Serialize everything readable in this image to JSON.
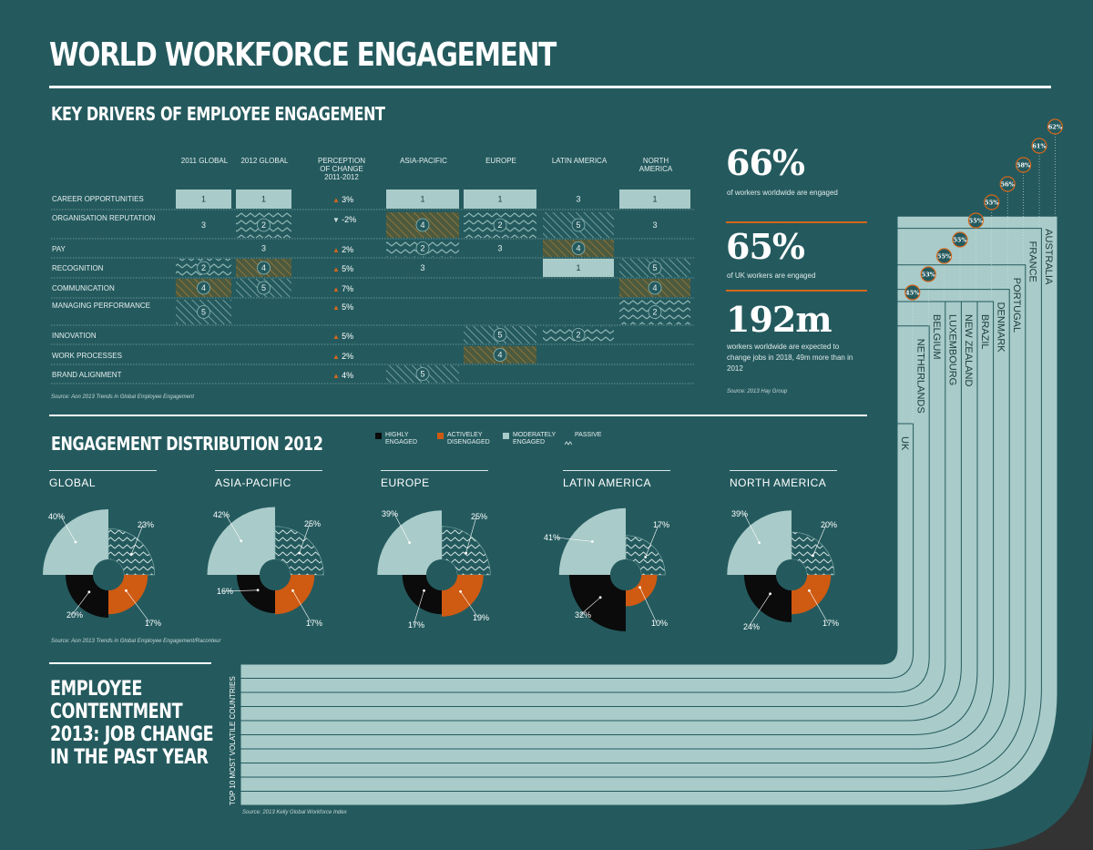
{
  "title": "WORLD WORKFORCE ENGAGEMENT",
  "drivers": {
    "heading": "KEY DRIVERS OF EMPLOYEE ENGAGEMENT",
    "columns": [
      "2011 GLOBAL",
      "2012 GLOBAL",
      "PERCEPTION OF CHANGE 2011-2012",
      "ASIA-PACIFIC",
      "EUROPE",
      "LATIN AMERICA",
      "NORTH AMERICA"
    ],
    "rows": [
      "CAREER OPPORTUNITIES",
      "ORGANISATION REPUTATION",
      "PAY",
      "RECOGNITION",
      "COMMUNICATION",
      "MANAGING PERFORMANCE",
      "INNOVATION",
      "WORK PROCESSES",
      "BRAND ALIGNMENT"
    ],
    "change": [
      "3%",
      "-2%",
      "2%",
      "5%",
      "7%",
      "5%",
      "5%",
      "2%",
      "4%"
    ],
    "source": "Source: Aon 2013 Trends in Global Employee Engagement"
  },
  "stats": {
    "s1_value": "66%",
    "s1_text": "of workers worldwide are engaged",
    "s2_value": "65%",
    "s2_text": "of UK workers are engaged",
    "s3_value": "192m",
    "s3_text": "workers worldwide are expected to change jobs in 2018, 49m more than in 2012",
    "source": "Source: 2013 Hay Group"
  },
  "distribution": {
    "heading": "ENGAGEMENT DISTRIBUTION 2012",
    "legend": [
      "HIGHLY ENGAGED",
      "ACTIVELEY DISENGAGED",
      "MODERATELY ENGAGED",
      "PASSIVE"
    ],
    "source": "Source: Aon 2013 Trends in Global Employee Engagement/Raconteur",
    "regions": [
      {
        "name": "GLOBAL",
        "moderate": "40%",
        "passive": "23%",
        "highly": "20%",
        "disengaged": "17%"
      },
      {
        "name": "ASIA-PACIFIC",
        "moderate": "42%",
        "passive": "25%",
        "highly": "16%",
        "disengaged": "17%"
      },
      {
        "name": "EUROPE",
        "moderate": "39%",
        "passive": "25%",
        "highly": "17%",
        "disengaged": "19%"
      },
      {
        "name": "LATIN AMERICA",
        "moderate": "41%",
        "passive": "17%",
        "highly": "32%",
        "disengaged": "10%"
      },
      {
        "name": "NORTH AMERICA",
        "moderate": "39%",
        "passive": "20%",
        "highly": "24%",
        "disengaged": "17%"
      }
    ]
  },
  "contentment": {
    "heading_lines": [
      "EMPLOYEE",
      "CONTENTMENT",
      "2013: JOB CHANGE",
      "IN THE PAST YEAR"
    ],
    "axis_label": "TOP 10 MOST VOLATILE COUNTRIES",
    "source": "Source: 2013 Kelly Global Workforce Index",
    "countries": [
      "UK",
      "NETHERLANDS",
      "BELGIUM",
      "LUXEMBOURG",
      "NEW ZEALAND",
      "BRAZIL",
      "DENMARK",
      "PORTUGAL",
      "FRANCE",
      "AUSTRALIA"
    ],
    "values": [
      "45%",
      "53%",
      "55%",
      "55%",
      "55%",
      "55%",
      "56%",
      "58%",
      "61%",
      "62%"
    ]
  },
  "chart_data": [
    {
      "type": "table",
      "title": "KEY DRIVERS OF EMPLOYEE ENGAGEMENT",
      "columns": [
        "2011 GLOBAL",
        "2012 GLOBAL",
        "PERCEPTION OF CHANGE 2011-2012",
        "ASIA-PACIFIC",
        "EUROPE",
        "LATIN AMERICA",
        "NORTH AMERICA"
      ],
      "rows": [
        {
          "driver": "CAREER OPPORTUNITIES",
          "values": [
            1,
            1,
            "3%",
            1,
            1,
            3,
            1
          ]
        },
        {
          "driver": "ORGANISATION REPUTATION",
          "values": [
            3,
            2,
            "-2%",
            4,
            2,
            5,
            3
          ]
        },
        {
          "driver": "PAY",
          "values": [
            null,
            3,
            "2%",
            2,
            3,
            4,
            null
          ]
        },
        {
          "driver": "RECOGNITION",
          "values": [
            2,
            4,
            "5%",
            3,
            null,
            1,
            5
          ]
        },
        {
          "driver": "COMMUNICATION",
          "values": [
            4,
            5,
            "7%",
            null,
            null,
            null,
            4
          ]
        },
        {
          "driver": "MANAGING PERFORMANCE",
          "values": [
            5,
            null,
            "5%",
            null,
            null,
            null,
            2
          ]
        },
        {
          "driver": "INNOVATION",
          "values": [
            null,
            null,
            "5%",
            null,
            5,
            2,
            null
          ]
        },
        {
          "driver": "WORK PROCESSES",
          "values": [
            null,
            null,
            "2%",
            null,
            4,
            null,
            null
          ]
        },
        {
          "driver": "BRAND ALIGNMENT",
          "values": [
            null,
            null,
            "4%",
            5,
            null,
            null,
            null
          ]
        }
      ]
    },
    {
      "type": "pie",
      "title": "ENGAGEMENT DISTRIBUTION 2012",
      "categories": [
        "MODERATELY ENGAGED",
        "PASSIVE",
        "ACTIVELEY DISENGAGED",
        "HIGHLY ENGAGED"
      ],
      "series": [
        {
          "name": "GLOBAL",
          "values": [
            40,
            23,
            17,
            20
          ]
        },
        {
          "name": "ASIA-PACIFIC",
          "values": [
            42,
            25,
            17,
            16
          ]
        },
        {
          "name": "EUROPE",
          "values": [
            39,
            25,
            19,
            17
          ]
        },
        {
          "name": "LATIN AMERICA",
          "values": [
            41,
            17,
            10,
            32
          ]
        },
        {
          "name": "NORTH AMERICA",
          "values": [
            39,
            20,
            17,
            24
          ]
        }
      ]
    },
    {
      "type": "bar",
      "title": "EMPLOYEE CONTENTMENT 2013: JOB CHANGE IN THE PAST YEAR",
      "ylabel": "TOP 10 MOST VOLATILE COUNTRIES",
      "categories": [
        "UK",
        "NETHERLANDS",
        "BELGIUM",
        "LUXEMBOURG",
        "NEW ZEALAND",
        "BRAZIL",
        "DENMARK",
        "PORTUGAL",
        "FRANCE",
        "AUSTRALIA"
      ],
      "values": [
        45,
        53,
        55,
        55,
        55,
        55,
        56,
        58,
        61,
        62
      ]
    }
  ],
  "colors": {
    "background": "#245a5e",
    "moderate": "#a9cbc9",
    "passive": "#245a5e",
    "disengaged": "#cf5a12",
    "highly": "#0b0b0b",
    "accent": "#d5661a"
  }
}
